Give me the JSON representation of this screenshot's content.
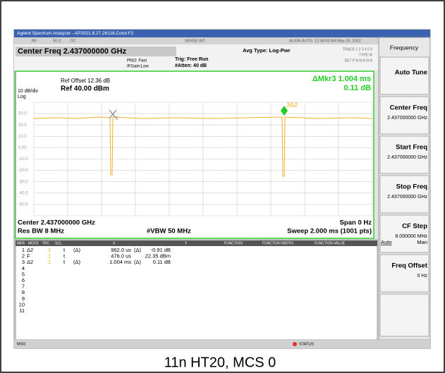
{
  "window_title": "Agilent Spectrum Analyzer - AP2021.8.27,26118,Cond F2",
  "top_bar": [
    "RF",
    "50 Ω",
    "DC",
    "SENSE:INT",
    "ALIGN AUTO",
    "12:36:03 AM May 20, 2022"
  ],
  "center_freq": "Center Freq 2.437000000 GHz",
  "pno": "PNO: Fast",
  "ifgain": "IFGain:Low",
  "trig": "Trig: Free Run",
  "atten": "#Atten: 40 dB",
  "avg_type": "Avg Type: Log-Pwr",
  "trace_info": [
    "TRACE 1 2 3 4 5 6",
    "TYPE W",
    "DET P N N N N N"
  ],
  "ref_offset": "Ref Offset 12.36 dB",
  "ref": "Ref 40.00 dBm",
  "scale": "10 dB/div",
  "log": "Log",
  "marker_readout": [
    "ΔMkr3 1.004 ms",
    "0.11 dB"
  ],
  "y_labels": [
    "30.0",
    "20.0",
    "10.0",
    "0.00",
    "-10.0",
    "-20.0",
    "-30.0",
    "-40.0",
    "-50.0"
  ],
  "marker_labels": [
    "2",
    "3Δ2"
  ],
  "footer": {
    "center": "Center 2.437000000 GHz",
    "span": "Span 0 Hz",
    "rbw": "Res BW 8 MHz",
    "vbw": "#VBW 50 MHz",
    "sweep": "Sweep  2.000 ms (1001 pts)"
  },
  "table": {
    "headers": [
      "MKR",
      "MODE",
      "TRC",
      "SCL",
      "X",
      "Y",
      "FUNCTION",
      "FUNCTION WIDTH",
      "FUNCTION VALUE"
    ],
    "rows": [
      {
        "mkr": "1",
        "mode": "Δ2",
        "trc": "1",
        "scl": "t",
        "scl_ref": "(Δ)",
        "x": "962.0 us",
        "x_ref": "(Δ)",
        "y": "-0.91 dB"
      },
      {
        "mkr": "2",
        "mode": "F",
        "trc": "1",
        "scl": "t",
        "x": "476.0 us",
        "y": "22.35 dBm"
      },
      {
        "mkr": "3",
        "mode": "Δ2",
        "trc": "1",
        "scl": "t",
        "scl_ref": "(Δ)",
        "x": "1.004 ms",
        "x_ref": "(Δ)",
        "y": "0.11 dB"
      },
      {
        "mkr": "4"
      },
      {
        "mkr": "5"
      },
      {
        "mkr": "6"
      },
      {
        "mkr": "7"
      },
      {
        "mkr": "8"
      },
      {
        "mkr": "9"
      },
      {
        "mkr": "10"
      },
      {
        "mkr": "11"
      }
    ]
  },
  "softkeys": {
    "title": "Frequency",
    "keys": [
      {
        "label": "Auto Tune"
      },
      {
        "label": "Center Freq",
        "value": "2.437000000 GHz"
      },
      {
        "label": "Start Freq",
        "value": "2.437000000 GHz"
      },
      {
        "label": "Stop Freq",
        "value": "2.437000000 GHz"
      },
      {
        "label": "CF Step",
        "value": "8.000000 MHz",
        "auto": "Auto",
        "man": "Man"
      },
      {
        "label": "Freq Offset",
        "value": "0 Hz"
      }
    ]
  },
  "status": {
    "msg": "MSG",
    "status": "STATUS"
  },
  "caption": "11n HT20, MCS 0"
}
